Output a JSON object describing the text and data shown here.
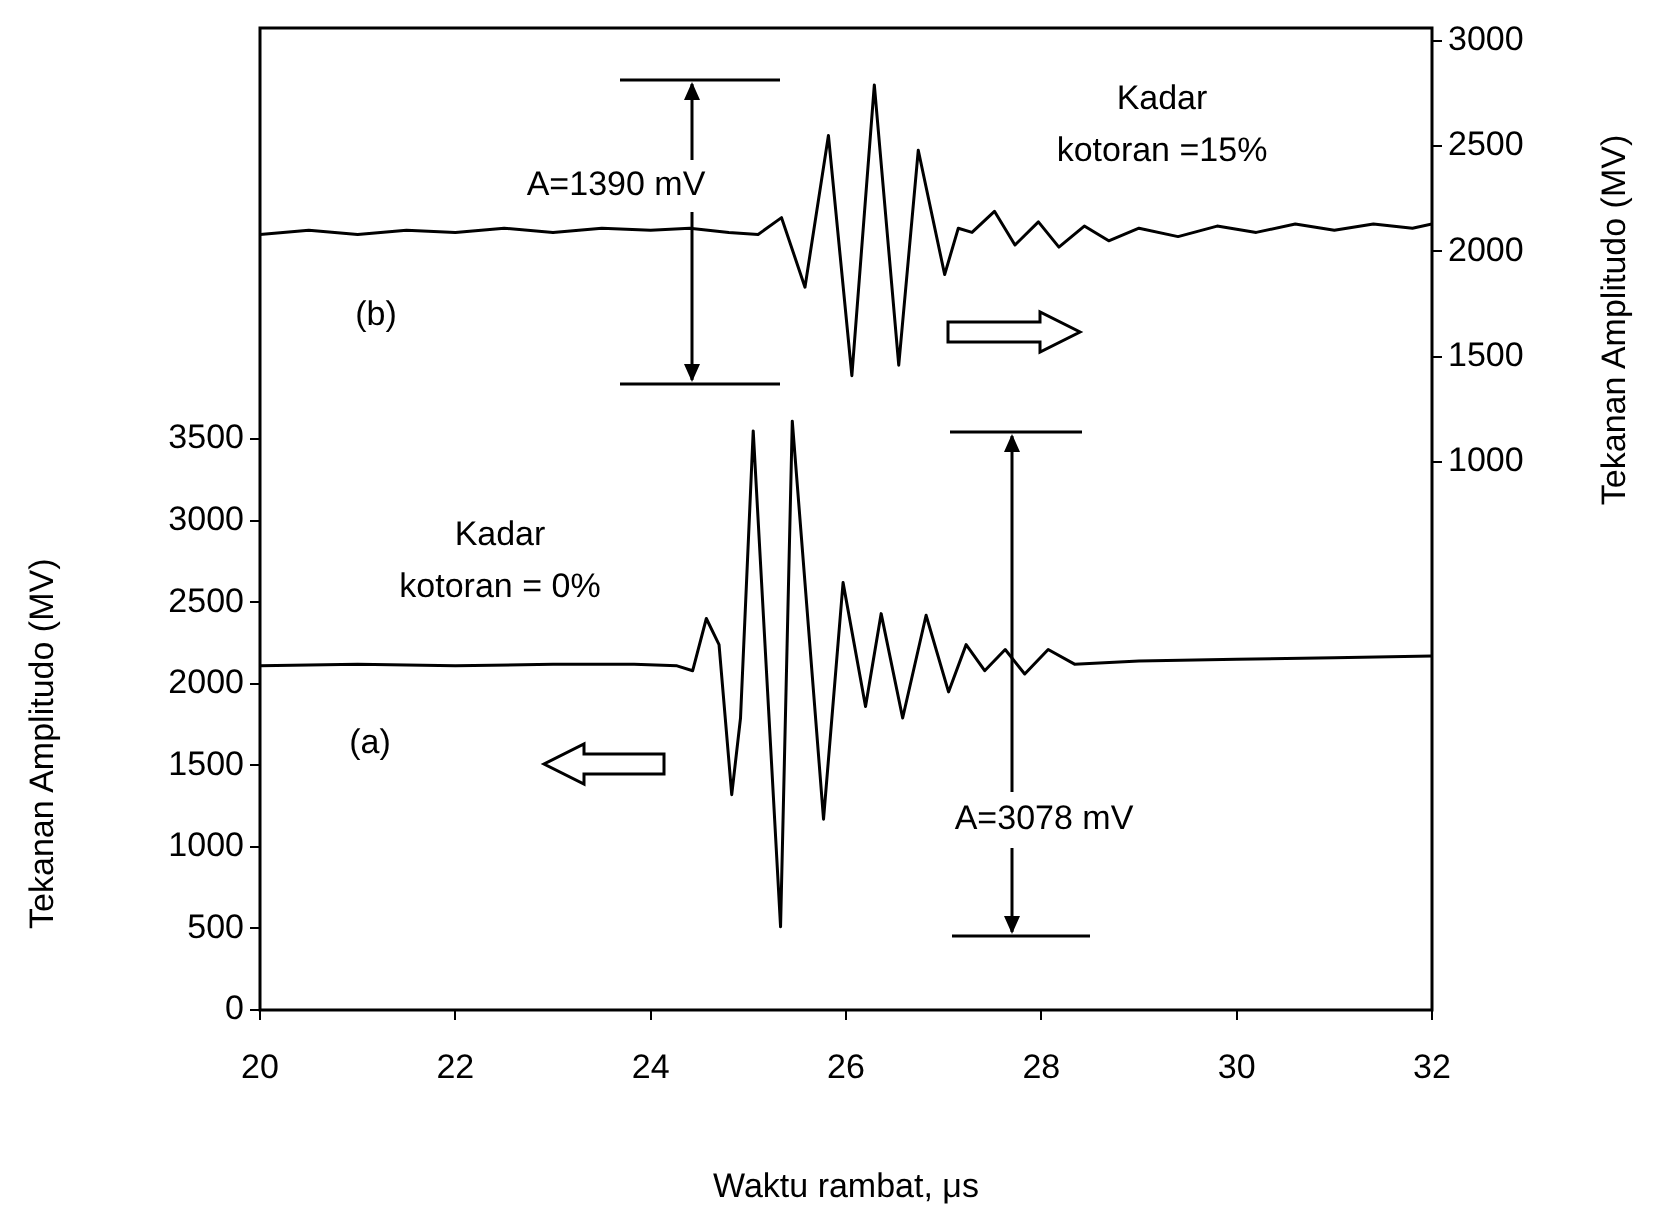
{
  "chart_data": {
    "type": "line",
    "xlabel": "Waktu rambat, μs",
    "ylabel": "Tekanan Amplitudo (MV)",
    "y2label": "Tekanan Amplitudo (MV)",
    "xlim": [
      20,
      32
    ],
    "xticks": [
      20,
      22,
      24,
      26,
      28,
      30,
      32
    ],
    "ylim": [
      0,
      6020
    ],
    "yticks": [
      0,
      500,
      1000,
      1500,
      2000,
      2500,
      3000,
      3500
    ],
    "y2lim": [
      -1600,
      3060
    ],
    "y2ticks": [
      1000,
      1500,
      2000,
      2500,
      3000
    ],
    "grid": false,
    "legend": false,
    "marker": "none",
    "line_style": "solid",
    "series": [
      {
        "color": "#000000",
        "x": [
          20,
          21,
          22,
          23,
          23.83,
          24.27,
          24.43,
          24.57,
          24.7,
          24.83,
          24.92,
          25.05,
          25.33,
          25.45,
          25.77,
          25.97,
          26.2,
          26.36,
          26.58,
          26.82,
          27.05,
          27.23,
          27.42,
          27.63,
          27.83,
          28.07,
          28.34,
          29,
          30,
          31,
          32
        ],
        "values": [
          2110,
          2120,
          2110,
          2120,
          2120,
          2110,
          2080,
          2400,
          2240,
          1320,
          1790,
          3550,
          510,
          3610,
          1170,
          2620,
          1860,
          2430,
          1790,
          2420,
          1950,
          2240,
          2080,
          2210,
          2060,
          2210,
          2120,
          2140,
          2150,
          2160,
          2170
        ]
      },
      {
        "color": "#000000",
        "axis": "y2",
        "x": [
          20,
          20.5,
          21,
          21.5,
          22,
          22.5,
          23,
          23.5,
          24,
          24.4,
          24.8,
          25.1,
          25.34,
          25.58,
          25.82,
          26.06,
          26.29,
          26.54,
          26.74,
          27.01,
          27.15,
          27.29,
          27.52,
          27.73,
          27.97,
          28.18,
          28.44,
          28.69,
          29,
          29.4,
          29.8,
          30.2,
          30.6,
          31,
          31.4,
          31.8,
          32
        ],
        "values": [
          2080,
          2100,
          2080,
          2100,
          2090,
          2110,
          2090,
          2110,
          2100,
          2110,
          2090,
          2080,
          2160,
          1830,
          2550,
          1410,
          2790,
          1460,
          2480,
          1890,
          2110,
          2090,
          2190,
          2030,
          2140,
          2020,
          2120,
          2050,
          2110,
          2070,
          2120,
          2090,
          2130,
          2100,
          2130,
          2110,
          2130
        ]
      }
    ],
    "annotations": [
      "A=1390 mV",
      "Kadar\nkotoran =15%",
      "(b)",
      "Kadar\nkotoran = 0%",
      "(a)",
      "A=3078 mV"
    ]
  }
}
